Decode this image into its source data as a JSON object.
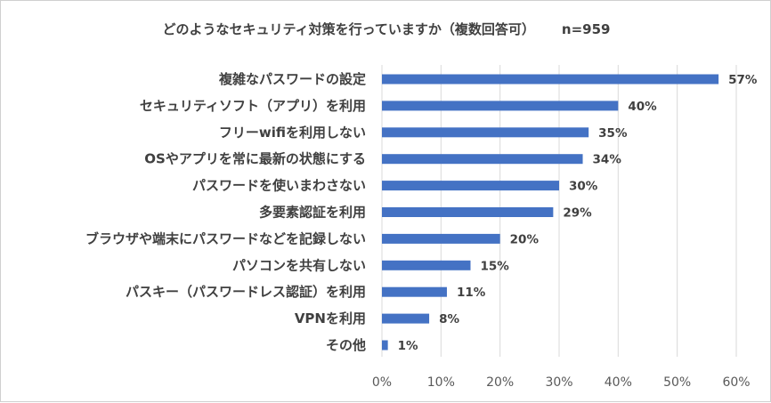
{
  "chart_data": {
    "type": "bar",
    "orientation": "horizontal",
    "title": "どのようなセキュリティ対策を行っていますか（複数回答可）",
    "sample_size": "n=959",
    "categories": [
      "複雑なパスワードの設定",
      "セキュリティソフト（アプリ）を利用",
      "フリーwifiを利用しない",
      "OSやアプリを常に最新の状態にする",
      "パスワードを使いまわさない",
      "多要素認証を利用",
      "ブラウザや端末にパスワードなどを記録しない",
      "パソコンを共有しない",
      "パスキー（パスワードレス認証）を利用",
      "VPNを利用",
      "その他"
    ],
    "values": [
      57,
      40,
      35,
      34,
      30,
      29,
      20,
      15,
      11,
      8,
      1
    ],
    "value_labels": [
      "57%",
      "40%",
      "35%",
      "34%",
      "30%",
      "29%",
      "20%",
      "15%",
      "11%",
      "8%",
      "1%"
    ],
    "xlim": [
      0,
      60
    ],
    "ticks": [
      0,
      10,
      20,
      30,
      40,
      50,
      60
    ],
    "tick_labels": [
      "0%",
      "10%",
      "20%",
      "30%",
      "40%",
      "50%",
      "60%"
    ],
    "grid": true,
    "bar_color": "#4472c4",
    "xlabel": "",
    "ylabel": ""
  }
}
